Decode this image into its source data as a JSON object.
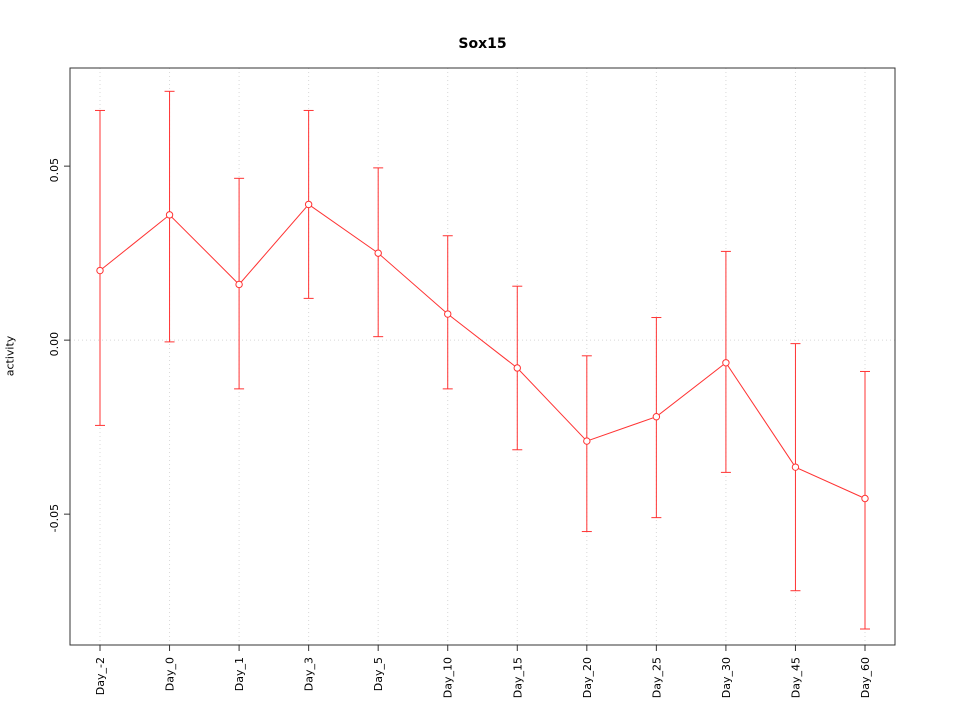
{
  "chart_data": {
    "type": "line",
    "title": "Sox15",
    "xlabel": "",
    "ylabel": "activity",
    "categories": [
      "Day_-2",
      "Day_0",
      "Day_1",
      "Day_3",
      "Day_5",
      "Day_10",
      "Day_15",
      "Day_20",
      "Day_25",
      "Day_30",
      "Day_45",
      "Day_60"
    ],
    "series": [
      {
        "name": "activity",
        "values": [
          0.02,
          0.036,
          0.016,
          0.039,
          0.025,
          0.0075,
          -0.008,
          -0.029,
          -0.022,
          -0.0065,
          -0.0365,
          -0.0455
        ],
        "error_upper": [
          0.066,
          0.0715,
          0.0465,
          0.066,
          0.0495,
          0.03,
          0.0155,
          -0.0045,
          0.0065,
          0.0255,
          -0.001,
          -0.009
        ],
        "error_lower": [
          -0.0245,
          -0.0005,
          -0.014,
          0.012,
          0.001,
          -0.014,
          -0.0315,
          -0.055,
          -0.051,
          -0.038,
          -0.072,
          -0.083
        ]
      }
    ],
    "yticks": [
      {
        "value": 0.05,
        "label": "0.05"
      },
      {
        "value": 0.0,
        "label": "0.00"
      },
      {
        "value": -0.05,
        "label": "-0.05"
      }
    ],
    "ylim": [
      -0.0876,
      0.0782
    ],
    "grid": "dotted vertical line at each category; dotted horizontal line at y=0",
    "legend": "none",
    "marker": "open-circle",
    "colors": {
      "series": "#ff3333",
      "grid": "#d8d8d8",
      "box": "#333333",
      "text": "#000000",
      "background": "#ffffff"
    }
  }
}
